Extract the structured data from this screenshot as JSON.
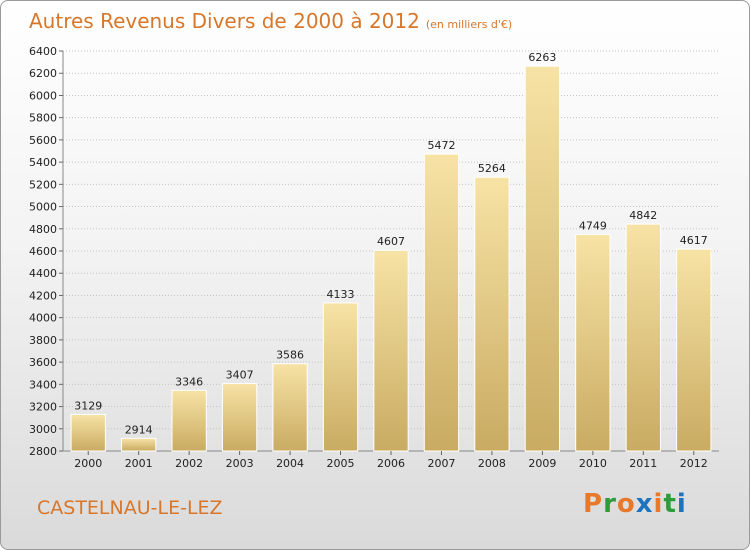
{
  "header": {
    "title": "Autres Revenus Divers de 2000 à 2012",
    "unit": "(en milliers d'€)"
  },
  "footer": {
    "city": "CASTELNAU-LE-LEZ",
    "logo_letters": [
      "P",
      "r",
      "o",
      "x",
      "i",
      "t",
      "i"
    ],
    "logo_colors": [
      "#e8782a",
      "#2e9c3a",
      "#e8782a",
      "#1e73be",
      "#e8782a",
      "#2e9c3a",
      "#1e73be"
    ]
  },
  "colors": {
    "title": "#d8772a",
    "bar_top": "#f7e3a5",
    "bar_bottom": "#c9ab62"
  },
  "chart_data": {
    "type": "bar",
    "categories": [
      "2000",
      "2001",
      "2002",
      "2003",
      "2004",
      "2005",
      "2006",
      "2007",
      "2008",
      "2009",
      "2010",
      "2011",
      "2012"
    ],
    "values": [
      3129,
      2914,
      3346,
      3407,
      3586,
      4133,
      4607,
      5472,
      5264,
      6263,
      4749,
      4842,
      4617
    ],
    "ylim": [
      2800,
      6400
    ],
    "yticks": [
      2800,
      3000,
      3200,
      3400,
      3600,
      3800,
      4000,
      4200,
      4400,
      4600,
      4800,
      5000,
      5200,
      5400,
      5600,
      5800,
      6000,
      6200,
      6400
    ],
    "grid": true,
    "legend": "none"
  }
}
